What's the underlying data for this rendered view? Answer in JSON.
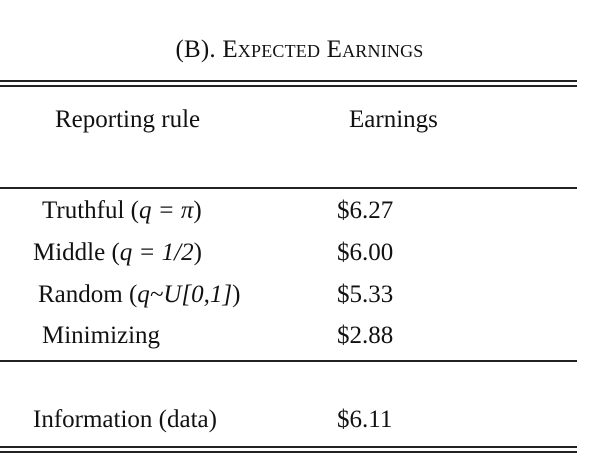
{
  "table": {
    "title_prefix": "(B). ",
    "title_caps": "Expected Earnings",
    "columns": [
      "Reporting rule",
      "Earnings"
    ],
    "rows": [
      {
        "rule": "Truthful (",
        "math": "q = π",
        "close": ")",
        "earnings": "$6.27"
      },
      {
        "rule": "Middle (",
        "math": "q = 1/2",
        "close": ")",
        "earnings": "$6.00"
      },
      {
        "rule": "Random (",
        "math": "q~U[0,1]",
        "close": ")",
        "earnings": "$5.33"
      },
      {
        "rule": "Minimizing",
        "math": "",
        "close": "",
        "earnings": "$2.88"
      }
    ],
    "data_row": {
      "rule": "Information (data)",
      "earnings": "$6.11"
    }
  }
}
